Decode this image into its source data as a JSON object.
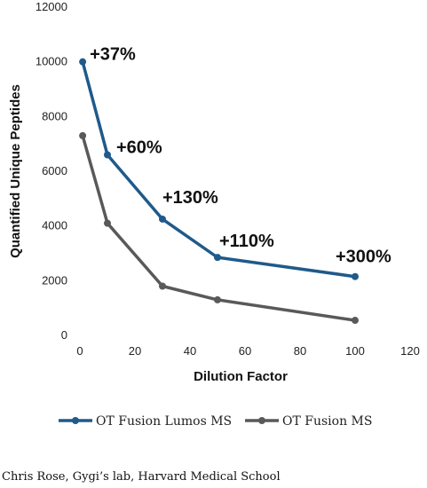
{
  "chart_data": {
    "type": "line",
    "xlabel": "Dilution Factor",
    "ylabel": "Quantified Unique Peptides",
    "xlim": [
      0,
      120
    ],
    "ylim": [
      0,
      12000
    ],
    "x_ticks": [
      "0",
      "20",
      "40",
      "60",
      "80",
      "100",
      "120"
    ],
    "y_ticks": [
      "0",
      "2000",
      "4000",
      "6000",
      "8000",
      "10000",
      "12000"
    ],
    "grid": false,
    "legend_position": "bottom",
    "series": [
      {
        "name": "OT Fusion Lumos MS",
        "color": "#1f5a8a",
        "x": [
          1,
          10,
          30,
          50,
          100
        ],
        "y": [
          10000,
          6600,
          4250,
          2850,
          2150
        ]
      },
      {
        "name": "OT Fusion MS",
        "color": "#595959",
        "x": [
          1,
          10,
          30,
          50,
          100
        ],
        "y": [
          7300,
          4100,
          1800,
          1300,
          550
        ]
      }
    ],
    "annotations": [
      {
        "text": "+37%",
        "x": 1,
        "y": 10000
      },
      {
        "text": "+60%",
        "x": 10,
        "y": 6600
      },
      {
        "text": "+130%",
        "x": 30,
        "y": 4250
      },
      {
        "text": "+110%",
        "x": 50,
        "y": 2850
      },
      {
        "text": "+300%",
        "x": 100,
        "y": 2150
      }
    ]
  },
  "footer": {
    "credit": "Chris Rose, Gygi’s lab, Harvard Medical School"
  }
}
